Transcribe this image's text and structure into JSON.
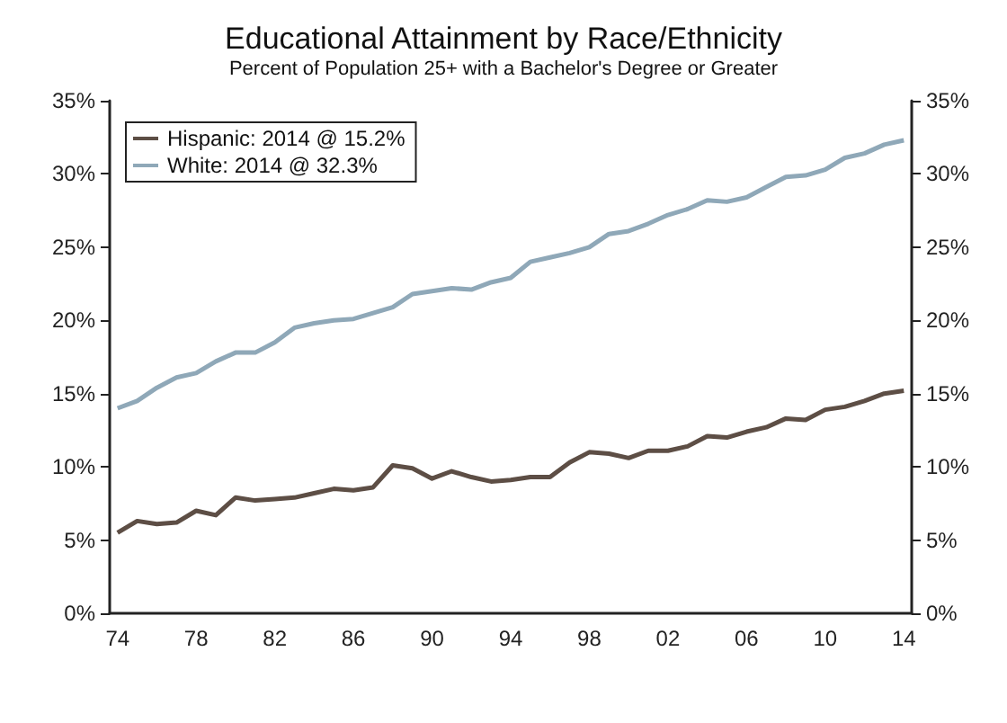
{
  "chart_data": {
    "type": "line",
    "title": "Educational Attainment by Race/Ethnicity",
    "subtitle": "Percent of Population 25+ with a Bachelor's Degree or Greater",
    "x": [
      1974,
      1975,
      1976,
      1977,
      1978,
      1979,
      1980,
      1981,
      1982,
      1983,
      1984,
      1985,
      1986,
      1987,
      1988,
      1989,
      1990,
      1991,
      1992,
      1993,
      1994,
      1995,
      1996,
      1997,
      1998,
      1999,
      2000,
      2001,
      2002,
      2003,
      2004,
      2005,
      2006,
      2007,
      2008,
      2009,
      2010,
      2011,
      2012,
      2013,
      2014
    ],
    "series": [
      {
        "name": "Hispanic: 2014 @ 15.2%",
        "color": "#5d4e45",
        "values": [
          5.5,
          6.3,
          6.1,
          6.2,
          7.0,
          6.7,
          7.9,
          7.7,
          7.8,
          7.9,
          8.2,
          8.5,
          8.4,
          8.6,
          10.1,
          9.9,
          9.2,
          9.7,
          9.3,
          9.0,
          9.1,
          9.3,
          9.3,
          10.3,
          11.0,
          10.9,
          10.6,
          11.1,
          11.1,
          11.4,
          12.1,
          12.0,
          12.4,
          12.7,
          13.3,
          13.2,
          13.9,
          14.1,
          14.5,
          15.0,
          15.2
        ]
      },
      {
        "name": "White: 2014 @ 32.3%",
        "color": "#8fa8b8",
        "values": [
          14.0,
          14.5,
          15.4,
          16.1,
          16.4,
          17.2,
          17.8,
          17.8,
          18.5,
          19.5,
          19.8,
          20.0,
          20.1,
          20.5,
          20.9,
          21.8,
          22.0,
          22.2,
          22.1,
          22.6,
          22.9,
          24.0,
          24.3,
          24.6,
          25.0,
          25.9,
          26.1,
          26.6,
          27.2,
          27.6,
          28.2,
          28.1,
          28.4,
          29.1,
          29.8,
          29.9,
          30.3,
          31.1,
          31.4,
          32.0,
          32.3
        ]
      }
    ],
    "xlim": [
      1973.6,
      2014.4
    ],
    "xticks": [
      {
        "value": 1974,
        "label": "74"
      },
      {
        "value": 1978,
        "label": "78"
      },
      {
        "value": 1982,
        "label": "82"
      },
      {
        "value": 1986,
        "label": "86"
      },
      {
        "value": 1990,
        "label": "90"
      },
      {
        "value": 1994,
        "label": "94"
      },
      {
        "value": 1998,
        "label": "98"
      },
      {
        "value": 2002,
        "label": "02"
      },
      {
        "value": 2006,
        "label": "06"
      },
      {
        "value": 2010,
        "label": "10"
      },
      {
        "value": 2014,
        "label": "14"
      }
    ],
    "ylim": [
      0,
      35
    ],
    "yticks": [
      {
        "value": 0,
        "label": "0%"
      },
      {
        "value": 5,
        "label": "5%"
      },
      {
        "value": 10,
        "label": "10%"
      },
      {
        "value": 15,
        "label": "15%"
      },
      {
        "value": 20,
        "label": "20%"
      },
      {
        "value": 25,
        "label": "25%"
      },
      {
        "value": 30,
        "label": "30%"
      },
      {
        "value": 35,
        "label": "35%"
      }
    ],
    "y2lim": [
      0,
      35
    ],
    "y2ticks": [
      {
        "value": 0,
        "label": "0%"
      },
      {
        "value": 5,
        "label": "5%"
      },
      {
        "value": 10,
        "label": "10%"
      },
      {
        "value": 15,
        "label": "15%"
      },
      {
        "value": 20,
        "label": "20%"
      },
      {
        "value": 25,
        "label": "25%"
      },
      {
        "value": 30,
        "label": "30%"
      },
      {
        "value": 35,
        "label": "35%"
      }
    ],
    "legend": "top left",
    "grid": false,
    "marker": "none",
    "line_style": "solid"
  }
}
